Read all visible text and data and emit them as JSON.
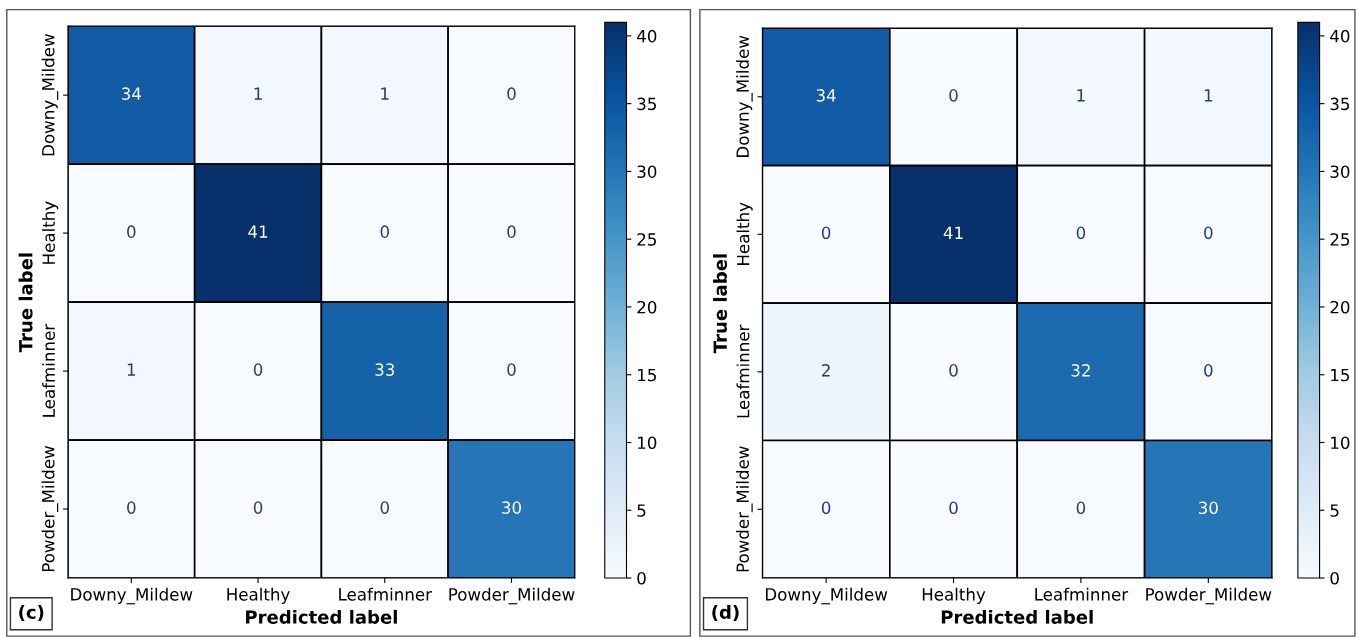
{
  "chart_data": [
    {
      "type": "heatmap",
      "xlabel": "Predicted label",
      "ylabel": "True label",
      "annotations": [
        "(c)"
      ],
      "categories": [
        "Downy_Mildew",
        "Healthy",
        "Leafminner",
        "Powder_Mildew"
      ],
      "y_categories": [
        "Downy_Mildew",
        "Healthy",
        "Leafminner",
        "Powder_Mildew"
      ],
      "cells": [
        [
          34,
          1,
          1,
          0
        ],
        [
          0,
          41,
          0,
          0
        ],
        [
          1,
          0,
          33,
          0
        ],
        [
          0,
          0,
          0,
          30
        ]
      ],
      "clim": [
        0,
        41
      ],
      "cticks": [
        0,
        5,
        10,
        15,
        20,
        25,
        30,
        35,
        40
      ],
      "data_labels": true
    },
    {
      "type": "heatmap",
      "xlabel": "Predicted label",
      "ylabel": "True label",
      "annotations": [
        "(d)"
      ],
      "categories": [
        "Downy_Mildew",
        "Healthy",
        "Leafminner",
        "Powder_Mildew"
      ],
      "y_categories": [
        "Downy_Mildew",
        "Healthy",
        "Leafminner",
        "Powder_Mildew"
      ],
      "cells": [
        [
          34,
          0,
          1,
          1
        ],
        [
          0,
          41,
          0,
          0
        ],
        [
          2,
          0,
          32,
          0
        ],
        [
          0,
          0,
          0,
          30
        ]
      ],
      "clim": [
        0,
        41
      ],
      "cticks": [
        0,
        5,
        10,
        15,
        20,
        25,
        30,
        35,
        40
      ],
      "data_labels": true
    }
  ]
}
